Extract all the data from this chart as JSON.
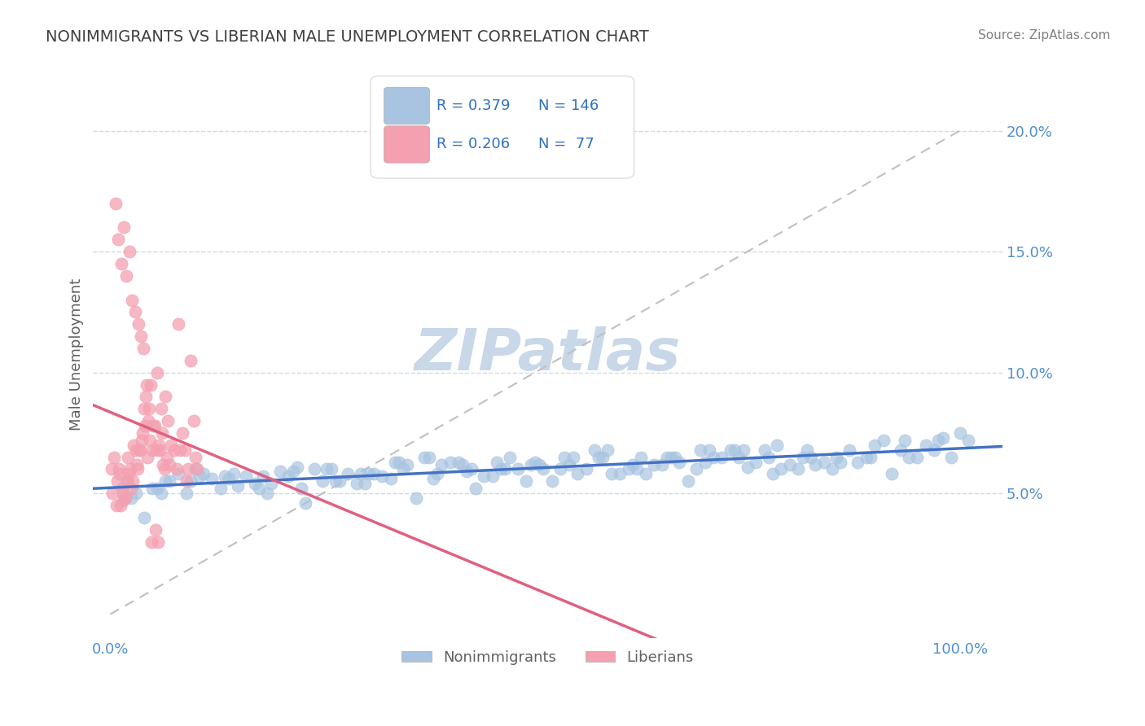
{
  "title": "NONIMMIGRANTS VS LIBERIAN MALE UNEMPLOYMENT CORRELATION CHART",
  "source": "Source: ZipAtlas.com",
  "ylabel": "Male Unemployment",
  "xlabel": "",
  "x_tick_labels": [
    "0.0%",
    "100.0%"
  ],
  "y_tick_labels": [
    "5.0%",
    "10.0%",
    "15.0%",
    "20.0%"
  ],
  "y_ticks": [
    0.05,
    0.1,
    0.15,
    0.2
  ],
  "xlim": [
    -0.02,
    1.05
  ],
  "ylim": [
    -0.01,
    0.225
  ],
  "legend_blue_label": "Nonimmigrants",
  "legend_pink_label": "Liberians",
  "R_blue": 0.379,
  "N_blue": 146,
  "R_pink": 0.206,
  "N_pink": 77,
  "blue_color": "#a8c4e0",
  "pink_color": "#f4a0b0",
  "blue_line_color": "#4472c4",
  "pink_line_color": "#e06080",
  "dashed_line_color": "#c0c0c0",
  "grid_color": "#d0d8e8",
  "watermark_color": "#c8d8e8",
  "title_color": "#404040",
  "axis_label_color": "#606060",
  "tick_label_color": "#5090d0",
  "stat_text_color": "#3070c0",
  "background_color": "#ffffff",
  "blue_scatter": {
    "x": [
      0.02,
      0.05,
      0.08,
      0.1,
      0.12,
      0.15,
      0.18,
      0.2,
      0.22,
      0.25,
      0.28,
      0.3,
      0.32,
      0.35,
      0.38,
      0.4,
      0.42,
      0.45,
      0.48,
      0.5,
      0.52,
      0.55,
      0.58,
      0.6,
      0.62,
      0.65,
      0.68,
      0.7,
      0.72,
      0.75,
      0.78,
      0.8,
      0.82,
      0.85,
      0.88,
      0.9,
      0.92,
      0.95,
      0.98,
      1.0,
      0.03,
      0.07,
      0.11,
      0.14,
      0.17,
      0.21,
      0.24,
      0.27,
      0.31,
      0.34,
      0.37,
      0.41,
      0.44,
      0.47,
      0.51,
      0.54,
      0.57,
      0.61,
      0.64,
      0.67,
      0.71,
      0.74,
      0.77,
      0.81,
      0.84,
      0.87,
      0.91,
      0.94,
      0.97,
      1.01,
      0.06,
      0.13,
      0.19,
      0.26,
      0.33,
      0.39,
      0.46,
      0.53,
      0.59,
      0.66,
      0.73,
      0.79,
      0.86,
      0.93,
      0.99,
      0.04,
      0.09,
      0.16,
      0.23,
      0.29,
      0.36,
      0.43,
      0.49,
      0.56,
      0.63,
      0.69,
      0.76,
      0.83,
      0.89,
      0.96,
      0.015,
      0.055,
      0.095,
      0.135,
      0.175,
      0.215,
      0.255,
      0.295,
      0.335,
      0.375,
      0.415,
      0.455,
      0.495,
      0.535,
      0.575,
      0.615,
      0.655,
      0.695,
      0.735,
      0.775,
      0.815,
      0.855,
      0.895,
      0.935,
      0.975,
      0.025,
      0.065,
      0.105,
      0.145,
      0.185,
      0.225,
      0.265,
      0.305,
      0.345,
      0.385,
      0.425,
      0.465,
      0.505,
      0.545,
      0.585,
      0.625,
      0.665,
      0.705,
      0.745,
      0.785,
      0.825
    ],
    "y": [
      0.055,
      0.052,
      0.058,
      0.06,
      0.056,
      0.053,
      0.057,
      0.059,
      0.061,
      0.055,
      0.058,
      0.054,
      0.057,
      0.062,
      0.056,
      0.063,
      0.059,
      0.057,
      0.06,
      0.063,
      0.055,
      0.058,
      0.065,
      0.058,
      0.06,
      0.062,
      0.055,
      0.063,
      0.065,
      0.061,
      0.058,
      0.062,
      0.068,
      0.06,
      0.063,
      0.07,
      0.058,
      0.065,
      0.073,
      0.075,
      0.05,
      0.055,
      0.058,
      0.056,
      0.054,
      0.057,
      0.06,
      0.055,
      0.058,
      0.063,
      0.065,
      0.063,
      0.057,
      0.065,
      0.06,
      0.062,
      0.068,
      0.06,
      0.062,
      0.063,
      0.065,
      0.065,
      0.068,
      0.06,
      0.063,
      0.068,
      0.072,
      0.065,
      0.068,
      0.072,
      0.05,
      0.052,
      0.054,
      0.06,
      0.056,
      0.062,
      0.06,
      0.06,
      0.058,
      0.065,
      0.068,
      0.06,
      0.063,
      0.068,
      0.065,
      0.04,
      0.05,
      0.057,
      0.046,
      0.054,
      0.048,
      0.052,
      0.055,
      0.06,
      0.058,
      0.06,
      0.063,
      0.062,
      0.065,
      0.07,
      0.047,
      0.052,
      0.055,
      0.057,
      0.052,
      0.059,
      0.06,
      0.058,
      0.063,
      0.065,
      0.062,
      0.063,
      0.062,
      0.065,
      0.065,
      0.062,
      0.065,
      0.068,
      0.068,
      0.065,
      0.065,
      0.065,
      0.065,
      0.072,
      0.072,
      0.048,
      0.055,
      0.057,
      0.058,
      0.05,
      0.052,
      0.055,
      0.058,
      0.06,
      0.058,
      0.06,
      0.06,
      0.062,
      0.065,
      0.068,
      0.065,
      0.065,
      0.068,
      0.068,
      0.07,
      0.065
    ]
  },
  "pink_scatter": {
    "x": [
      0.005,
      0.008,
      0.01,
      0.012,
      0.015,
      0.018,
      0.02,
      0.022,
      0.025,
      0.028,
      0.03,
      0.032,
      0.035,
      0.038,
      0.04,
      0.042,
      0.045,
      0.048,
      0.05,
      0.052,
      0.055,
      0.058,
      0.06,
      0.062,
      0.065,
      0.068,
      0.07,
      0.072,
      0.075,
      0.078,
      0.08,
      0.082,
      0.085,
      0.088,
      0.09,
      0.092,
      0.095,
      0.098,
      0.1,
      0.102,
      0.003,
      0.007,
      0.011,
      0.014,
      0.017,
      0.021,
      0.024,
      0.027,
      0.031,
      0.034,
      0.037,
      0.041,
      0.044,
      0.047,
      0.051,
      0.054,
      0.057,
      0.061,
      0.064,
      0.067,
      0.002,
      0.006,
      0.009,
      0.013,
      0.016,
      0.019,
      0.023,
      0.026,
      0.029,
      0.033,
      0.036,
      0.039,
      0.043,
      0.046,
      0.049,
      0.053,
      0.056
    ],
    "y": [
      0.065,
      0.055,
      0.06,
      0.045,
      0.05,
      0.048,
      0.055,
      0.058,
      0.052,
      0.07,
      0.068,
      0.06,
      0.068,
      0.075,
      0.085,
      0.09,
      0.08,
      0.095,
      0.068,
      0.078,
      0.1,
      0.068,
      0.085,
      0.062,
      0.09,
      0.08,
      0.062,
      0.07,
      0.068,
      0.06,
      0.12,
      0.068,
      0.075,
      0.068,
      0.055,
      0.06,
      0.105,
      0.08,
      0.065,
      0.06,
      0.05,
      0.045,
      0.058,
      0.052,
      0.048,
      0.065,
      0.06,
      0.055,
      0.062,
      0.068,
      0.072,
      0.078,
      0.065,
      0.072,
      0.078,
      0.068,
      0.07,
      0.075,
      0.06,
      0.065,
      0.06,
      0.17,
      0.155,
      0.145,
      0.16,
      0.14,
      0.15,
      0.13,
      0.125,
      0.12,
      0.115,
      0.11,
      0.095,
      0.085,
      0.03,
      0.035,
      0.03
    ]
  }
}
